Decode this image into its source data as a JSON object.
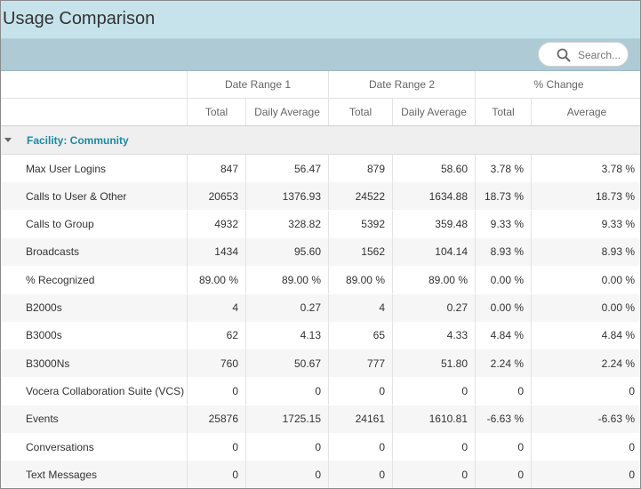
{
  "window": {
    "title": "Usage Comparison"
  },
  "search": {
    "placeholder": "Search..."
  },
  "table": {
    "group_headers": [
      "Date Range 1",
      "Date Range 2",
      "% Change"
    ],
    "sub_headers": [
      "Total",
      "Daily Average",
      "Total",
      "Daily Average",
      "Total",
      "Average"
    ],
    "group_label": "Facility: Community",
    "rows": [
      {
        "name": "Max User Logins",
        "values": [
          "847",
          "56.47",
          "879",
          "58.60",
          "3.78 %",
          "3.78 %"
        ]
      },
      {
        "name": "Calls to User & Other",
        "values": [
          "20653",
          "1376.93",
          "24522",
          "1634.88",
          "18.73 %",
          "18.73 %"
        ]
      },
      {
        "name": "Calls to Group",
        "values": [
          "4932",
          "328.82",
          "5392",
          "359.48",
          "9.33 %",
          "9.33 %"
        ]
      },
      {
        "name": "Broadcasts",
        "values": [
          "1434",
          "95.60",
          "1562",
          "104.14",
          "8.93 %",
          "8.93 %"
        ]
      },
      {
        "name": "% Recognized",
        "values": [
          "89.00 %",
          "89.00 %",
          "89.00 %",
          "89.00 %",
          "0.00 %",
          "0.00 %"
        ]
      },
      {
        "name": "B2000s",
        "values": [
          "4",
          "0.27",
          "4",
          "0.27",
          "0.00 %",
          "0.00 %"
        ]
      },
      {
        "name": "B3000s",
        "values": [
          "62",
          "4.13",
          "65",
          "4.33",
          "4.84 %",
          "4.84 %"
        ]
      },
      {
        "name": "B3000Ns",
        "values": [
          "760",
          "50.67",
          "777",
          "51.80",
          "2.24 %",
          "2.24 %"
        ]
      },
      {
        "name": "Vocera Collaboration Suite (VCS)",
        "values": [
          "0",
          "0",
          "0",
          "0",
          "0",
          "0"
        ]
      },
      {
        "name": "Events",
        "values": [
          "25876",
          "1725.15",
          "24161",
          "1610.81",
          "-6.63 %",
          "-6.63 %"
        ]
      },
      {
        "name": "Conversations",
        "values": [
          "0",
          "0",
          "0",
          "0",
          "0",
          "0"
        ]
      },
      {
        "name": "Text Messages",
        "values": [
          "0",
          "0",
          "0",
          "0",
          "0",
          "0"
        ]
      }
    ]
  },
  "icons": {
    "search": "search-icon",
    "collapse": "caret-down-icon"
  },
  "colors": {
    "title_bar": "#c6e3ec",
    "toolbar": "#aecbd5",
    "group_label": "#1b8aa3"
  }
}
